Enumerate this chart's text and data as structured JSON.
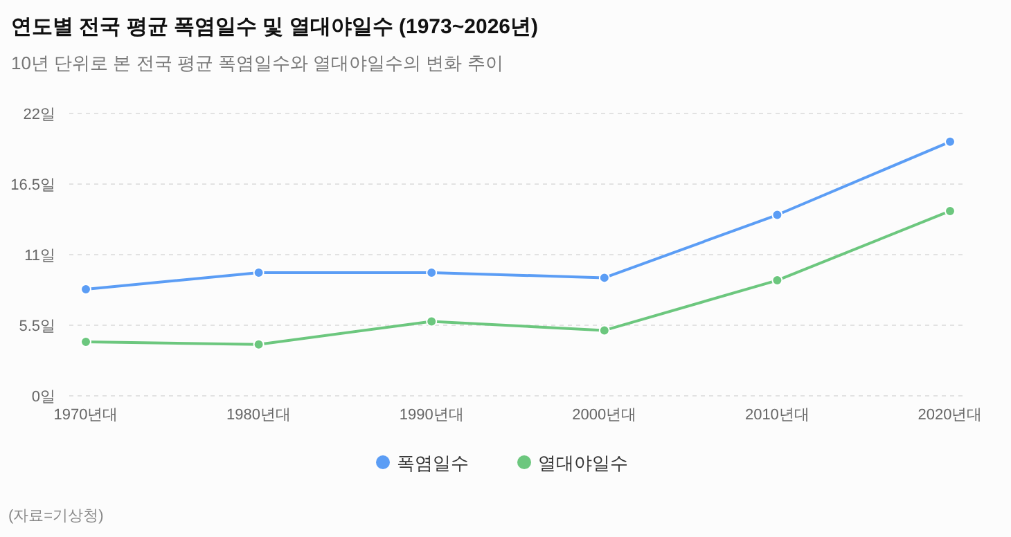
{
  "chart_data": {
    "type": "line",
    "title": "연도별 전국 평균 폭염일수 및 열대야일수 (1973~2026년)",
    "subtitle": "10년 단위로 본 전국 평균 폭염일수와 열대야일수의 변화 추이",
    "categories": [
      "1970년대",
      "1980년대",
      "1990년대",
      "2000년대",
      "2010년대",
      "2020년대"
    ],
    "series": [
      {
        "name": "폭염일수",
        "color": "#5b9df5",
        "values": [
          8.3,
          9.6,
          9.6,
          9.2,
          14.1,
          19.8
        ]
      },
      {
        "name": "열대야일수",
        "color": "#6cc77e",
        "values": [
          4.2,
          4.0,
          5.8,
          5.1,
          9.0,
          14.4
        ]
      }
    ],
    "ylim": [
      0,
      22
    ],
    "yticks": [
      {
        "value": 0,
        "label": "0일"
      },
      {
        "value": 5.5,
        "label": "5.5일"
      },
      {
        "value": 11,
        "label": "11일"
      },
      {
        "value": 16.5,
        "label": "16.5일"
      },
      {
        "value": 22,
        "label": "22일"
      }
    ],
    "grid": "y",
    "legend": "bottom",
    "marker": "circle",
    "line_style": "solid",
    "annotations": [
      "(자료=기상청)"
    ]
  }
}
